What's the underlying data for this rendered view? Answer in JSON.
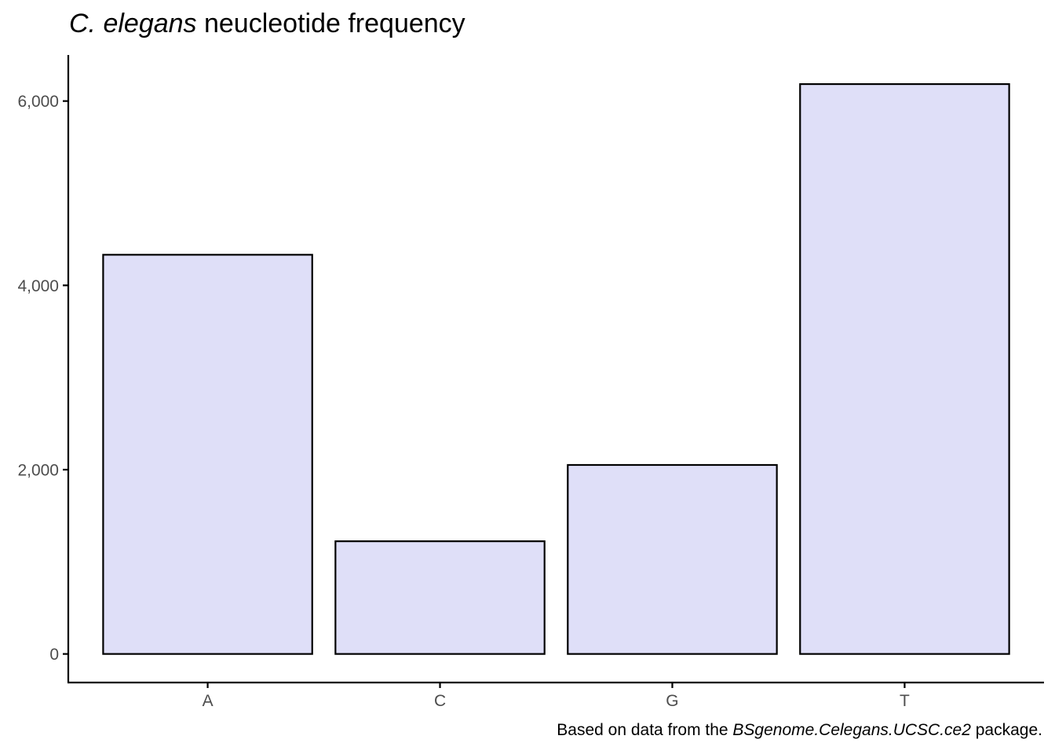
{
  "chart_data": {
    "type": "bar",
    "title": {
      "italic_part": "C. elegans",
      "rest": " neucleotide frequency"
    },
    "caption": {
      "before": "Based on data from the ",
      "italic_part": "BSgenome.Celegans.UCSC.ce2",
      "after": " package."
    },
    "xlabel": "",
    "ylabel": "",
    "categories": [
      "A",
      "C",
      "G",
      "T"
    ],
    "values": [
      4332,
      1223,
      2051,
      6184
    ],
    "ylim": [
      -310,
      6500
    ],
    "yticks": [
      0,
      2000,
      4000,
      6000
    ],
    "ytick_labels": [
      "0",
      "2,000",
      "4,000",
      "6,000"
    ],
    "grid": false,
    "legend": "none",
    "colors": {
      "bar_fill": "#dfdff8",
      "bar_stroke": "#000000",
      "axis": "#000000",
      "tick_label": "#4d4d4d"
    }
  }
}
